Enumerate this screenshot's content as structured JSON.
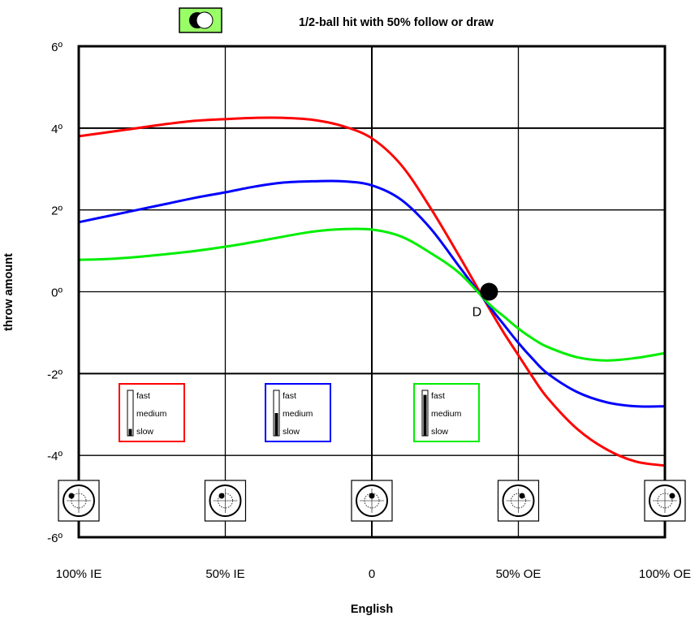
{
  "chart_data": {
    "type": "line",
    "title": "1/2-ball hit with 50% follow or draw",
    "xlabel": "English",
    "ylabel": "throw amount",
    "x_range": [
      -100,
      100
    ],
    "ylim": [
      -6,
      6
    ],
    "x_ticks": [
      {
        "value": -100,
        "label": "100% IE"
      },
      {
        "value": -50,
        "label": "50% IE"
      },
      {
        "value": 0,
        "label": "0"
      },
      {
        "value": 50,
        "label": "50% OE"
      },
      {
        "value": 100,
        "label": "100% OE"
      }
    ],
    "y_ticks": [
      {
        "value": 6,
        "label": "6º"
      },
      {
        "value": 4,
        "label": "4º"
      },
      {
        "value": 2,
        "label": "2º"
      },
      {
        "value": 0,
        "label": "0º"
      },
      {
        "value": -2,
        "label": "-2º"
      },
      {
        "value": -4,
        "label": "-4º"
      },
      {
        "value": -6,
        "label": "-6º"
      }
    ],
    "grid": true,
    "series": [
      {
        "color": "#ff0000",
        "x": [
          -100,
          -90,
          -80,
          -70,
          -60,
          -50,
          -40,
          -30,
          -20,
          -10,
          0,
          10,
          20,
          30,
          40,
          45,
          50,
          55,
          60,
          70,
          80,
          90,
          100
        ],
        "y": [
          3.8,
          3.9,
          4.0,
          4.1,
          4.18,
          4.22,
          4.25,
          4.25,
          4.2,
          4.05,
          3.75,
          3.1,
          2.05,
          0.85,
          -0.4,
          -1.0,
          -1.55,
          -2.1,
          -2.6,
          -3.35,
          -3.85,
          -4.15,
          -4.25
        ]
      },
      {
        "color": "#0000ff",
        "x": [
          -100,
          -90,
          -80,
          -70,
          -60,
          -50,
          -40,
          -30,
          -20,
          -10,
          0,
          10,
          20,
          30,
          40,
          45,
          50,
          55,
          60,
          70,
          80,
          90,
          100
        ],
        "y": [
          1.7,
          1.85,
          2.0,
          2.15,
          2.3,
          2.43,
          2.57,
          2.67,
          2.7,
          2.7,
          2.6,
          2.25,
          1.55,
          0.6,
          -0.35,
          -0.8,
          -1.25,
          -1.65,
          -2.0,
          -2.45,
          -2.7,
          -2.8,
          -2.8
        ]
      },
      {
        "color": "#00ee00",
        "x": [
          -100,
          -90,
          -80,
          -70,
          -60,
          -50,
          -40,
          -30,
          -20,
          -10,
          0,
          10,
          20,
          30,
          40,
          45,
          50,
          55,
          60,
          70,
          80,
          90,
          100
        ],
        "y": [
          0.78,
          0.8,
          0.85,
          0.92,
          1.0,
          1.1,
          1.22,
          1.35,
          1.47,
          1.53,
          1.52,
          1.35,
          0.95,
          0.45,
          -0.3,
          -0.6,
          -0.9,
          -1.15,
          -1.35,
          -1.6,
          -1.68,
          -1.62,
          -1.5
        ]
      }
    ],
    "annotations": [
      {
        "text": "D",
        "x": 40,
        "y": 0
      }
    ]
  },
  "speed_boxes": [
    {
      "color": "#ff0000",
      "fill_fraction": 0.15,
      "labels": [
        "fast",
        "medium",
        "slow"
      ]
    },
    {
      "color": "#0000ff",
      "fill_fraction": 0.5,
      "labels": [
        "fast",
        "medium",
        "slow"
      ]
    },
    {
      "color": "#00ee00",
      "fill_fraction": 0.9,
      "labels": [
        "fast",
        "medium",
        "slow"
      ]
    }
  ],
  "cue_diagrams": [
    {
      "icon": "cue-ball-tip-icon",
      "english": -100
    },
    {
      "icon": "cue-ball-tip-icon",
      "english": -50
    },
    {
      "icon": "cue-ball-tip-icon",
      "english": 0
    },
    {
      "icon": "cue-ball-tip-icon",
      "english": 50
    },
    {
      "icon": "cue-ball-tip-icon",
      "english": 100
    }
  ],
  "legend_icon": {
    "icon": "half-ball-hit-icon",
    "background": "#99ff66"
  }
}
